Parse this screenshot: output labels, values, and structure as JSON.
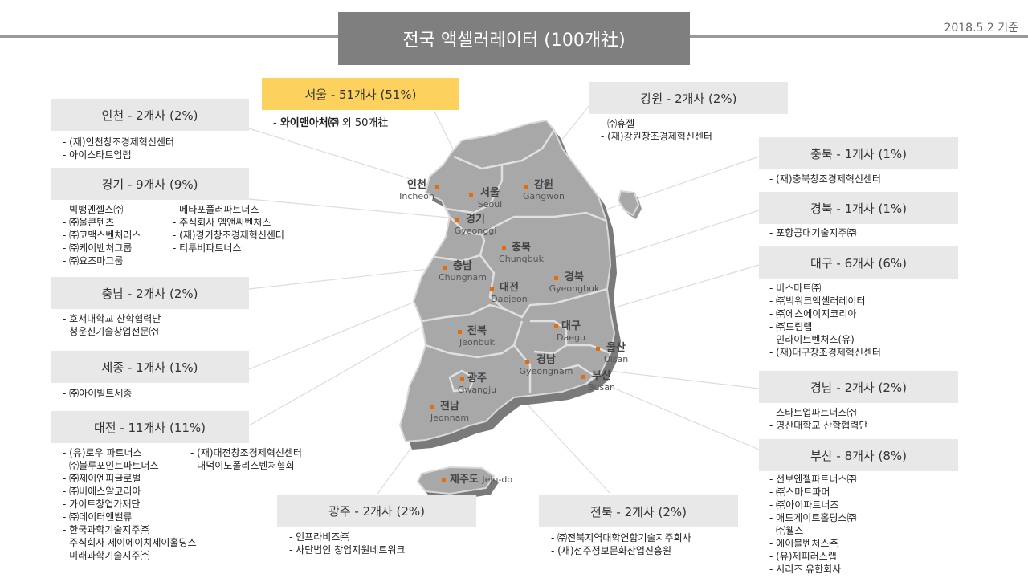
{
  "title": "전국 액셀러레이터 (100개社)",
  "date": "2018.5.2 기준",
  "colors": {
    "highlight": "#fcd15d",
    "box": "#e8e8e8",
    "title_bg": "#7f7f7f",
    "marker": "#e46c0a"
  },
  "regions": {
    "seoul": {
      "header": "서울 - 51개사 (51%)",
      "lead": "와이앤아처㈜",
      "rest": "외 50개社"
    },
    "incheon": {
      "header": "인천 - 2개사 (2%)",
      "items": [
        "(재)인천창조경제혁신센터",
        "아이스타트업랩"
      ]
    },
    "gyeonggi": {
      "header": "경기 - 9개사 (9%)",
      "col1": [
        "빅뱅엔젤스㈜",
        "㈜울콘텐츠",
        "㈜코맥스벤처러스",
        "㈜케이벤처그룹",
        "㈜요즈마그룹"
      ],
      "col2": [
        "메타포플러파트너스",
        "주식회사 엠앤씨벤처스",
        "(재)경기창조경제혁신센터",
        "티투비파트너스"
      ]
    },
    "chungnam": {
      "header": "충남 - 2개사 (2%)",
      "items": [
        "호서대학교 산학협력단",
        "청운신기술창업전문㈜"
      ]
    },
    "sejong": {
      "header": "세종 - 1개사 (1%)",
      "items": [
        "㈜아이빌트세종"
      ]
    },
    "daejeon": {
      "header": "대전 - 11개사 (11%)",
      "col1": [
        "(유)로우 파트너스",
        "㈜블루포인트파트너스",
        "㈜제이엔피글로벌",
        "㈜비에스알코리아",
        "카이트창업가재단",
        "㈜데이터앤밸류",
        "한국과학기술지주㈜",
        "주식회사 제이에이치제이홀딩스",
        "미래과학기술지주㈜"
      ],
      "col2": [
        "(재)대전창조경제혁신센터",
        "대덕이노폴리스벤처협회"
      ]
    },
    "gangwon": {
      "header": "강원 - 2개사 (2%)",
      "items": [
        "㈜휴젤",
        "(재)강원창조경제혁신센터"
      ]
    },
    "chungbuk": {
      "header": "충북 - 1개사 (1%)",
      "items": [
        "(재)충북창조경제혁신센터"
      ]
    },
    "gyeongbuk": {
      "header": "경북 - 1개사 (1%)",
      "items": [
        "포항공대기술지주㈜"
      ]
    },
    "daegu": {
      "header": "대구 - 6개사 (6%)",
      "items": [
        "비스마트㈜",
        "㈜빅워크액셀러레이터",
        "㈜에스에이지코리아",
        "㈜드림랩",
        "인라이트벤처스(유)",
        "(재)대구창조경제혁신센터"
      ]
    },
    "gyeongnam": {
      "header": "경남 - 2개사 (2%)",
      "items": [
        "스타트업파트너스㈜",
        "영산대학교 산학협력단"
      ]
    },
    "busan": {
      "header": "부산 - 8개사 (8%)",
      "items": [
        "선보엔젤파트너스㈜",
        "㈜스마트파머",
        "㈜아이파트너즈",
        "애드게이트홀딩스㈜",
        "㈜웰스",
        "에이블벤처스㈜",
        "(유)제피러스랩",
        "시리즈 유한회사"
      ]
    },
    "gwangju": {
      "header": "광주 - 2개사 (2%)",
      "items": [
        "인프라비즈㈜",
        "사단법인 창업지원네트워크"
      ]
    },
    "jeonbuk": {
      "header": "전북 - 2개사 (2%)",
      "items": [
        "㈜전북지역대학연합기술지주회사",
        "(재)전주정보문화산업진흥원"
      ]
    }
  },
  "map_labels": {
    "incheon": {
      "ko": "인천",
      "en": "Incheon"
    },
    "seoul": {
      "ko": "서울",
      "en": "Seoul"
    },
    "gangwon": {
      "ko": "강원",
      "en": "Gangwon"
    },
    "gyeonggi": {
      "ko": "경기",
      "en": "Gyeonggi"
    },
    "chungbuk": {
      "ko": "충북",
      "en": "Chungbuk"
    },
    "chungnam": {
      "ko": "충남",
      "en": "Chungnam"
    },
    "daejeon": {
      "ko": "대전",
      "en": "Daejeon"
    },
    "gyeongbuk": {
      "ko": "경북",
      "en": "Gyeongbuk"
    },
    "jeonbuk": {
      "ko": "전북",
      "en": "Jeonbuk"
    },
    "daegu": {
      "ko": "대구",
      "en": "Daegu"
    },
    "ulsan": {
      "ko": "울산",
      "en": "Ulsan"
    },
    "gyeongnam": {
      "ko": "경남",
      "en": "Gyeongnam"
    },
    "busan": {
      "ko": "부산",
      "en": "Busan"
    },
    "gwangju": {
      "ko": "광주",
      "en": "Gwangju"
    },
    "jeonnam": {
      "ko": "전남",
      "en": "Jeonnam"
    },
    "jeju": {
      "ko": "제주도",
      "en": "Jeju-do"
    }
  }
}
